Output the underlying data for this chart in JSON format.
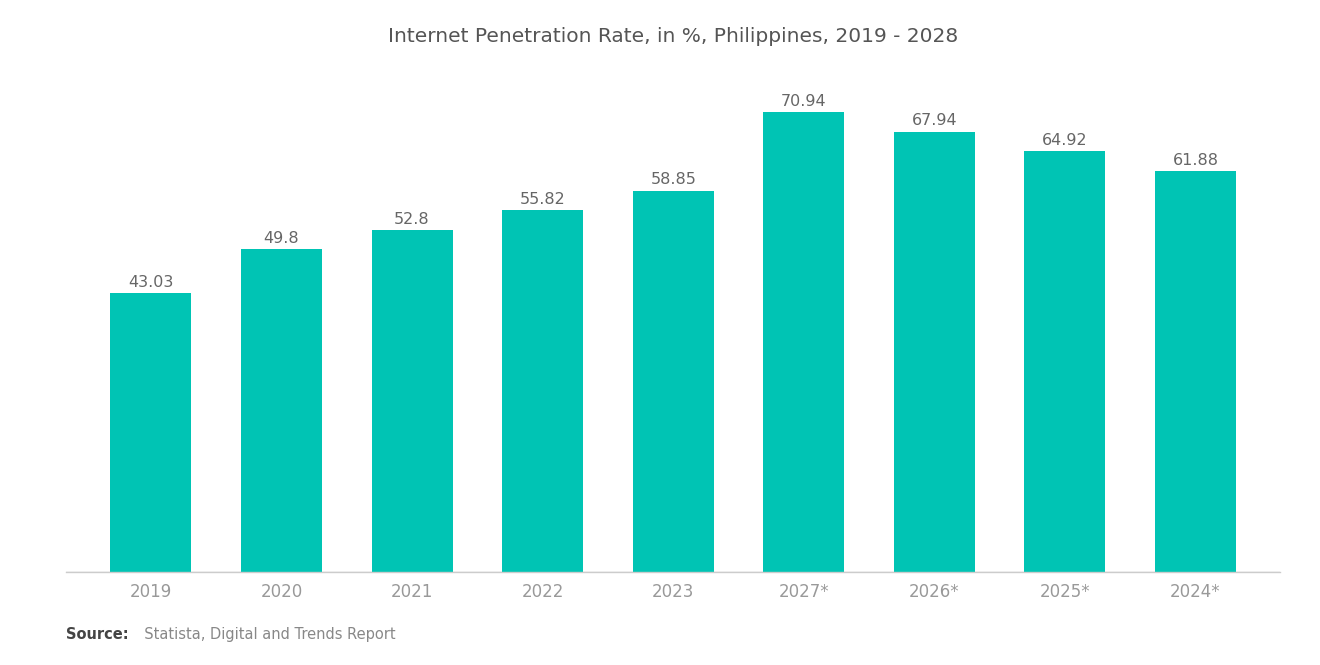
{
  "title": "Internet Penetration Rate, in %, Philippines, 2019 - 2028",
  "categories": [
    "2019",
    "2020",
    "2021",
    "2022",
    "2023",
    "2027*",
    "2026*",
    "2025*",
    "2024*"
  ],
  "values": [
    43.03,
    49.8,
    52.8,
    55.82,
    58.85,
    70.94,
    67.94,
    64.92,
    61.88
  ],
  "bar_color": "#00C4B4",
  "background_color": "#ffffff",
  "title_fontsize": 14.5,
  "label_fontsize": 11.5,
  "tick_fontsize": 12,
  "source_bold": "Source:",
  "source_rest": "  Statista, Digital and Trends Report",
  "ylim": [
    0,
    78
  ],
  "value_label_color": "#666666",
  "tick_color": "#999999",
  "spine_color": "#cccccc",
  "title_color": "#555555"
}
